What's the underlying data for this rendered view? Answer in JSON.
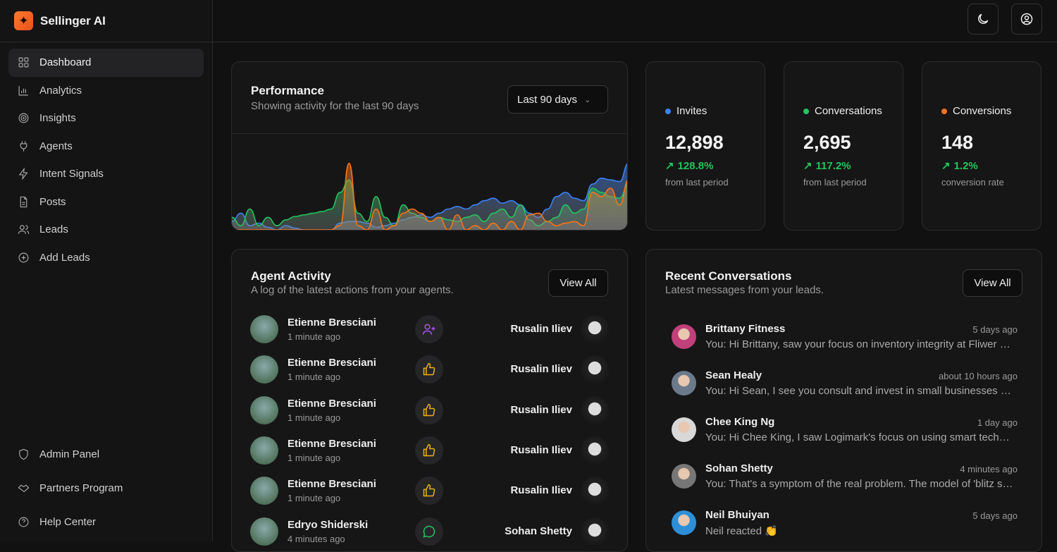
{
  "app": {
    "name": "Sellinger AI"
  },
  "sidebar": {
    "items": [
      {
        "label": "Dashboard",
        "icon": "grid-icon",
        "active": true
      },
      {
        "label": "Analytics",
        "icon": "bar-chart-icon"
      },
      {
        "label": "Insights",
        "icon": "target-icon"
      },
      {
        "label": "Agents",
        "icon": "plug-icon"
      },
      {
        "label": "Intent Signals",
        "icon": "lightning-icon"
      },
      {
        "label": "Posts",
        "icon": "document-icon"
      },
      {
        "label": "Leads",
        "icon": "users-icon"
      },
      {
        "label": "Add Leads",
        "icon": "plus-circle-icon"
      }
    ],
    "bottom": [
      {
        "label": "Admin Panel",
        "icon": "shield-icon"
      },
      {
        "label": "Partners Program",
        "icon": "handshake-icon"
      },
      {
        "label": "Help Center",
        "icon": "help-circle-icon"
      }
    ]
  },
  "topbar": {
    "theme_icon": "moon-icon",
    "account_icon": "user-circle-icon"
  },
  "performance": {
    "title": "Performance",
    "subtitle": "Showing activity for the last 90 days",
    "range": "Last 90 days"
  },
  "stats": [
    {
      "label": "Invites",
      "value": "12,898",
      "change": "128.8%",
      "note": "from last period",
      "color": "#3b82f6"
    },
    {
      "label": "Conversations",
      "value": "2,695",
      "change": "117.2%",
      "note": "from last period",
      "color": "#22c55e"
    },
    {
      "label": "Conversions",
      "value": "148",
      "change": "1.2%",
      "note": "conversion rate",
      "color": "#f97316"
    }
  ],
  "agent_activity": {
    "title": "Agent Activity",
    "subtitle": "A log of the latest actions from your agents.",
    "view_all": "View All",
    "rows": [
      {
        "agent": "Etienne Bresciani",
        "time": "1 minute ago",
        "action": "user-plus-icon",
        "target": "Rusalin Iliev"
      },
      {
        "agent": "Etienne Bresciani",
        "time": "1 minute ago",
        "action": "thumbs-up-icon",
        "target": "Rusalin Iliev"
      },
      {
        "agent": "Etienne Bresciani",
        "time": "1 minute ago",
        "action": "thumbs-up-icon",
        "target": "Rusalin Iliev"
      },
      {
        "agent": "Etienne Bresciani",
        "time": "1 minute ago",
        "action": "thumbs-up-icon",
        "target": "Rusalin Iliev"
      },
      {
        "agent": "Etienne Bresciani",
        "time": "1 minute ago",
        "action": "thumbs-up-icon",
        "target": "Rusalin Iliev"
      },
      {
        "agent": "Edryo Shiderski",
        "time": "4 minutes ago",
        "action": "message-icon",
        "target": "Sohan Shetty"
      }
    ]
  },
  "recent_conversations": {
    "title": "Recent Conversations",
    "subtitle": "Latest messages from your leads.",
    "view_all": "View All",
    "rows": [
      {
        "name": "Brittany Fitness",
        "time": "5 days ago",
        "message": "You: Hi Brittany, saw your focus on inventory integrity at Fliwer and wanted to connect",
        "color": "#c0407a"
      },
      {
        "name": "Sean Healy",
        "time": "about 10 hours ago",
        "message": "You: Hi Sean, I see you consult and invest in small businesses and wanted to connect",
        "color": "#6a7a8a"
      },
      {
        "name": "Chee King Ng",
        "time": "1 day ago",
        "message": "You: Hi Chee King, I saw Logimark's focus on using smart technology",
        "color": "#d8d8d8"
      },
      {
        "name": "Sohan Shetty",
        "time": "4 minutes ago",
        "message": "You: That's a symptom of the real problem. The model of 'blitz scaling'",
        "color": "#777"
      },
      {
        "name": "Neil Bhuiyan",
        "time": "5 days ago",
        "message": "Neil reacted 👏",
        "color": "#2d8fd8"
      }
    ]
  },
  "chart_data": {
    "type": "area",
    "stacked": false,
    "axes_visible": false,
    "grid": false,
    "x_range_days": 90,
    "series": [
      {
        "color": "#3b82f6",
        "values": [
          10,
          20,
          5,
          8,
          3,
          0,
          5,
          2,
          0,
          0,
          0,
          0,
          8,
          10,
          10,
          8,
          3,
          5,
          8,
          12,
          15,
          18,
          15,
          20,
          25,
          28,
          25,
          30,
          35,
          38,
          32,
          35,
          30,
          20,
          15,
          25,
          40,
          45,
          38,
          35,
          55,
          62,
          60,
          58,
          80
        ]
      },
      {
        "color": "#22c55e",
        "values": [
          15,
          5,
          25,
          5,
          15,
          5,
          12,
          16,
          18,
          20,
          22,
          25,
          45,
          60,
          20,
          10,
          40,
          15,
          5,
          30,
          20,
          15,
          10,
          15,
          12,
          10,
          15,
          18,
          10,
          20,
          25,
          15,
          30,
          12,
          5,
          10,
          15,
          30,
          20,
          25,
          50,
          45,
          40,
          38,
          55
        ]
      },
      {
        "color": "#f97316",
        "values": [
          0,
          0,
          0,
          0,
          0,
          0,
          0,
          0,
          0,
          0,
          0,
          0,
          5,
          80,
          5,
          0,
          25,
          0,
          5,
          20,
          25,
          20,
          10,
          15,
          0,
          18,
          0,
          5,
          0,
          8,
          0,
          10,
          0,
          18,
          20,
          10,
          5,
          8,
          10,
          5,
          45,
          40,
          50,
          30,
          60
        ]
      }
    ]
  }
}
